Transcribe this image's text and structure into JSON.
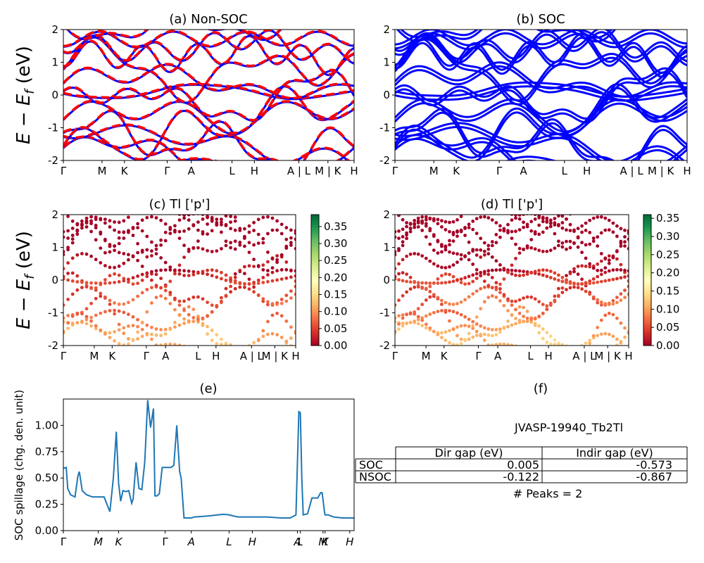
{
  "kpath": {
    "labels": [
      "Γ",
      "M",
      "K",
      "Γ",
      "A",
      "L",
      "H",
      "A | L",
      "M | K",
      "H"
    ],
    "positions": [
      0,
      0.133,
      0.21,
      0.357,
      0.44,
      0.58,
      0.657,
      0.81,
      0.91,
      1.0
    ],
    "edge_ticks_ce": [
      "Γ",
      "M",
      "K",
      "Γ",
      "A",
      "L",
      "H",
      "A | L",
      "M | K",
      "H"
    ]
  },
  "chart_data": [
    {
      "id": "a",
      "type": "line",
      "title": "(a) Non-SOC",
      "ylabel": "E − E_f (eV)",
      "ylim": [
        -2,
        2
      ],
      "yticks": [
        -2,
        -1,
        0,
        1,
        2
      ],
      "series": [
        {
          "spin": "up",
          "color": "#0000ff",
          "style": "solid"
        },
        {
          "spin": "down",
          "color": "#ff0000",
          "style": "dashed"
        }
      ]
    },
    {
      "id": "b",
      "type": "line",
      "title": "(b) SOC",
      "ylim": [
        -2,
        2
      ],
      "yticks": [
        -2,
        -1,
        0,
        1,
        2
      ],
      "series": [
        {
          "color": "#0000ff",
          "style": "solid"
        }
      ]
    },
    {
      "id": "c",
      "type": "scatter",
      "title": "(c)  Tl ['p']",
      "ylabel": "E − E_f (eV)",
      "ylim": [
        -2,
        2
      ],
      "yticks": [
        -2,
        -1,
        0,
        1,
        2
      ],
      "colormap": "RdYlGn",
      "colorbar_ticks": [
        "0.00",
        "0.05",
        "0.10",
        "0.15",
        "0.20",
        "0.25",
        "0.30",
        "0.35"
      ],
      "colorbar_range": [
        0,
        0.385
      ]
    },
    {
      "id": "d",
      "type": "scatter",
      "title": "(d) Tl ['p']",
      "ylim": [
        -2,
        2
      ],
      "yticks": [
        -2,
        -1,
        0,
        1,
        2
      ],
      "colormap": "RdYlGn",
      "colorbar_ticks": [
        "0.00",
        "0.05",
        "0.10",
        "0.15",
        "0.20",
        "0.25",
        "0.30",
        "0.35"
      ],
      "colorbar_range": [
        0,
        0.36
      ]
    },
    {
      "id": "e",
      "type": "line",
      "title": "(e)",
      "ylabel": "SOC spillage (chg. den. unit)",
      "ylim": [
        0,
        1.25
      ],
      "yticks": [
        "0.00",
        "0.25",
        "0.50",
        "0.75",
        "1.00"
      ],
      "xticks": [
        "Γ",
        "M",
        "K",
        "Γ",
        "A",
        "L",
        "H",
        "A",
        "L",
        "M",
        "K",
        "H"
      ],
      "color": "#1f77b4",
      "x": [
        0,
        0.01,
        0.015,
        0.025,
        0.04,
        0.05,
        0.055,
        0.065,
        0.08,
        0.1,
        0.12,
        0.14,
        0.16,
        0.172,
        0.182,
        0.19,
        0.197,
        0.205,
        0.215,
        0.225,
        0.235,
        0.24,
        0.25,
        0.26,
        0.27,
        0.28,
        0.29,
        0.3,
        0.31,
        0.315,
        0.322,
        0.33,
        0.34,
        0.35,
        0.36,
        0.37,
        0.38,
        0.39,
        0.4,
        0.405,
        0.415,
        0.425,
        0.43,
        0.44,
        0.45,
        0.5,
        0.55,
        0.57,
        0.6,
        0.65,
        0.7,
        0.75,
        0.78,
        0.8,
        0.81,
        0.815,
        0.82,
        0.825,
        0.84,
        0.855,
        0.865,
        0.875,
        0.885,
        0.89,
        0.898,
        0.9,
        0.91,
        0.93,
        0.96,
        1.0
      ],
      "values": [
        0.59,
        0.6,
        0.4,
        0.34,
        0.32,
        0.52,
        0.56,
        0.38,
        0.34,
        0.32,
        0.32,
        0.32,
        0.18,
        0.5,
        0.94,
        0.45,
        0.28,
        0.38,
        0.37,
        0.38,
        0.26,
        0.3,
        0.65,
        0.4,
        0.39,
        0.65,
        1.24,
        0.98,
        1.16,
        0.33,
        0.33,
        0.35,
        0.6,
        0.6,
        0.6,
        0.6,
        0.62,
        1.0,
        0.56,
        0.5,
        0.12,
        0.12,
        0.12,
        0.12,
        0.13,
        0.14,
        0.155,
        0.15,
        0.13,
        0.13,
        0.13,
        0.12,
        0.12,
        0.15,
        1.13,
        1.12,
        0.5,
        0.15,
        0.16,
        0.31,
        0.31,
        0.31,
        0.36,
        0.36,
        0.18,
        0.15,
        0.15,
        0.13,
        0.12,
        0.12
      ]
    }
  ],
  "panel_f": {
    "title": "(f)",
    "material": "JVASP-19940_Tb2Tl",
    "col_headers": [
      "Dir gap (eV)",
      "Indir gap (eV)"
    ],
    "rows": [
      {
        "label": "SOC",
        "dir": "0.005",
        "indir": "-0.573"
      },
      {
        "label": "NSOC",
        "dir": "-0.122",
        "indir": "-0.867"
      }
    ],
    "peaks": "# Peaks = 2"
  }
}
